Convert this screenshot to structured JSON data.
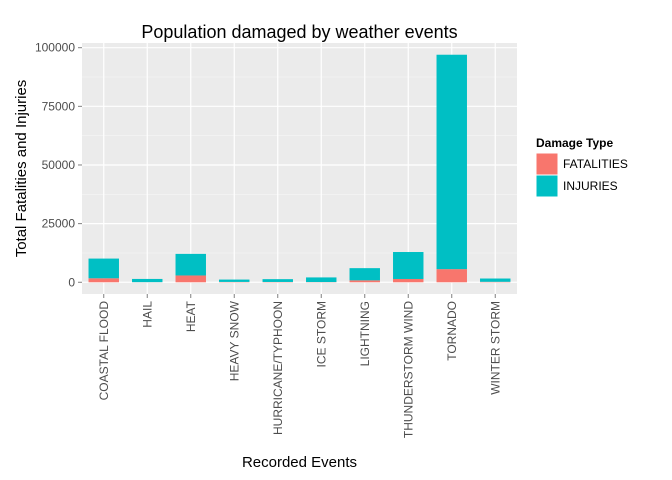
{
  "chart_data": {
    "type": "bar",
    "stacked": true,
    "title": "Population damaged by weather events",
    "xlabel": "Recorded Events",
    "ylabel": "Total Fatalities and Injuries",
    "categories": [
      "COASTAL FLOOD",
      "HAIL",
      "HEAT",
      "HEAVY SNOW",
      "HURRICANE/TYPHOON",
      "ICE STORM",
      "LIGHTNING",
      "THUNDERSTORM WIND",
      "TORNADO",
      "WINTER STORM"
    ],
    "series": [
      {
        "name": "FATALITIES",
        "color": "#F8766D",
        "values": [
          1700,
          50,
          2900,
          150,
          130,
          90,
          820,
          1400,
          5600,
          200
        ]
      },
      {
        "name": "INJURIES",
        "color": "#00BFC4",
        "values": [
          8400,
          1370,
          9200,
          1000,
          1200,
          1980,
          5200,
          11500,
          91400,
          1400
        ]
      }
    ],
    "ylim": [
      -5000,
      102000
    ],
    "yticks": [
      0,
      25000,
      50000,
      75000,
      100000
    ],
    "ytick_labels": [
      "0",
      "25000",
      "50000",
      "75000",
      "100000"
    ],
    "legend": {
      "title": "Damage Type",
      "placement": "right"
    },
    "grid": true,
    "panel_color": "#EBEBEB"
  }
}
